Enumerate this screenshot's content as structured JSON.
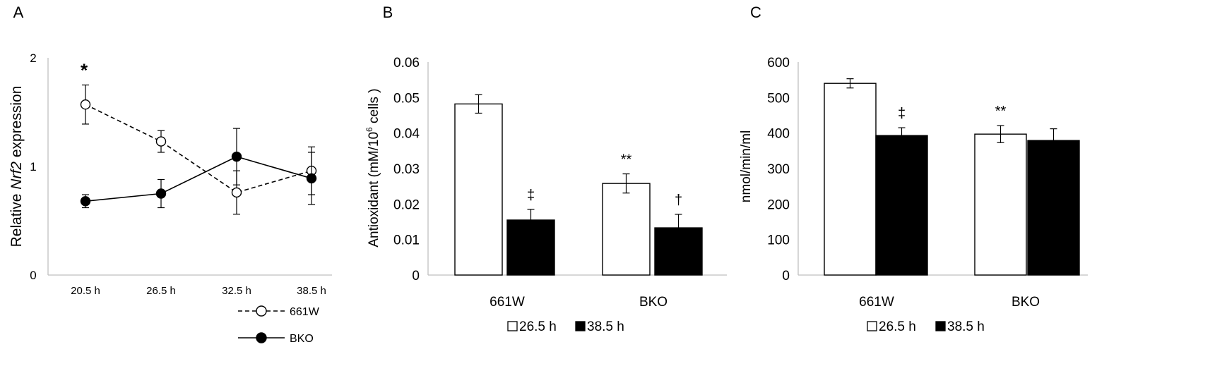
{
  "chart_data": [
    {
      "panel": "A",
      "type": "line",
      "ylabel_pre": "Relative ",
      "ylabel_em": "Nrf2",
      "ylabel_post": " expression",
      "xlabel": "",
      "categories": [
        "20.5 h",
        "26.5  h",
        "32.5 h",
        "38.5 h"
      ],
      "ylim": [
        0,
        2
      ],
      "yticks": [
        "0",
        "1",
        "2"
      ],
      "series": [
        {
          "name": "661W",
          "marker": "open-circle",
          "line": "dashed",
          "values": [
            1.57,
            1.23,
            0.76,
            0.96
          ],
          "errors": [
            0.18,
            0.1,
            0.2,
            0.22
          ]
        },
        {
          "name": "BKO",
          "marker": "filled-circle",
          "line": "solid",
          "values": [
            0.68,
            0.75,
            1.09,
            0.89
          ],
          "errors": [
            0.06,
            0.13,
            0.26,
            0.24
          ]
        }
      ],
      "annotations": [
        {
          "text": "*",
          "category": "20.5 h"
        }
      ]
    },
    {
      "panel": "B",
      "type": "bar",
      "ylabel_pre": "Antioxidant (mM/10",
      "ylabel_sup": "6",
      "ylabel_post": " cells )",
      "categories": [
        "661W",
        "BKO"
      ],
      "ylim": [
        0,
        0.06
      ],
      "yticks": [
        "0",
        "0.01",
        "0.02",
        "0.03",
        "0.04",
        "0.05",
        "0.06"
      ],
      "series": [
        {
          "name": "26.5 h",
          "fill": "white",
          "values": [
            0.0482,
            0.0258
          ],
          "errors": [
            0.0026,
            0.0027
          ]
        },
        {
          "name": "38.5 h",
          "fill": "black",
          "values": [
            0.0155,
            0.0133
          ],
          "errors": [
            0.003,
            0.0038
          ]
        }
      ],
      "annotations": [
        {
          "text": "‡",
          "category": "661W",
          "series": "38.5 h"
        },
        {
          "text": "**",
          "category": "BKO",
          "series": "26.5 h"
        },
        {
          "text": "†",
          "category": "BKO",
          "series": "38.5 h"
        }
      ]
    },
    {
      "panel": "C",
      "type": "bar",
      "ylabel": "nmol/min/ml",
      "categories": [
        "661W",
        "BKO"
      ],
      "ylim": [
        0,
        600
      ],
      "yticks": [
        "0",
        "100",
        "200",
        "300",
        "400",
        "500",
        "600"
      ],
      "series": [
        {
          "name": "26.5 h",
          "fill": "white",
          "values": [
            540,
            397
          ],
          "errors": [
            13,
            24
          ]
        },
        {
          "name": "38.5 h",
          "fill": "black",
          "values": [
            393,
            379
          ],
          "errors": [
            22,
            33
          ]
        }
      ],
      "annotations": [
        {
          "text": "‡",
          "category": "661W",
          "series": "38.5 h"
        },
        {
          "text": "**",
          "category": "BKO",
          "series": "26.5 h"
        }
      ]
    }
  ],
  "colors": {
    "axis": "#bfbfbf",
    "ink": "#000000",
    "bar_fill_dark": "#000000",
    "bar_fill_light": "#ffffff"
  }
}
